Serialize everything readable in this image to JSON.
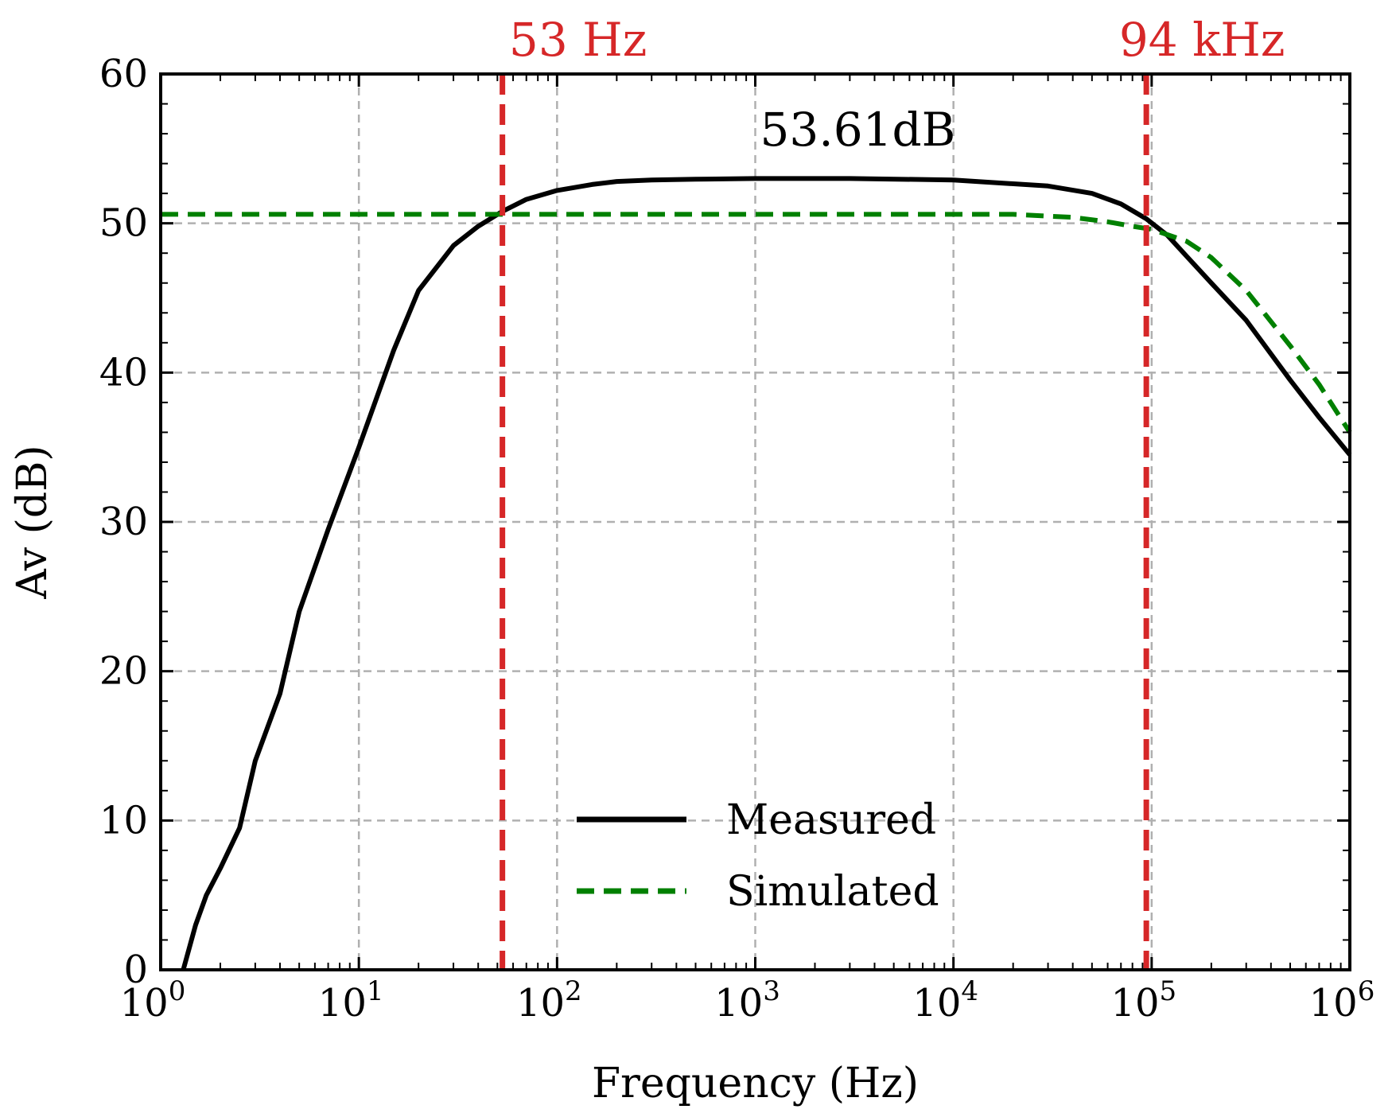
{
  "chart_data": {
    "type": "line",
    "xscale": "log",
    "xlabel": "Frequency (Hz)",
    "ylabel": "Av (dB)",
    "xlim": [
      1,
      1000000
    ],
    "ylim": [
      0,
      60
    ],
    "grid": true,
    "x_ticks": [
      {
        "value": 1,
        "base": "10",
        "exp": "0"
      },
      {
        "value": 10,
        "base": "10",
        "exp": "1"
      },
      {
        "value": 100,
        "base": "10",
        "exp": "2"
      },
      {
        "value": 1000,
        "base": "10",
        "exp": "3"
      },
      {
        "value": 10000,
        "base": "10",
        "exp": "4"
      },
      {
        "value": 100000,
        "base": "10",
        "exp": "5"
      },
      {
        "value": 1000000,
        "base": "10",
        "exp": "6"
      }
    ],
    "y_ticks": [
      0,
      10,
      20,
      30,
      40,
      50,
      60
    ],
    "series": [
      {
        "name": "Measured",
        "color": "#000000",
        "style": "solid",
        "x": [
          1.3,
          1.5,
          1.7,
          2,
          2.5,
          3,
          4,
          5,
          7,
          10,
          15,
          20,
          30,
          40,
          53,
          70,
          100,
          150,
          200,
          300,
          500,
          1000,
          3000,
          10000,
          30000,
          50000,
          70000,
          94000,
          120000,
          150000,
          200000,
          300000,
          500000,
          700000,
          1000000
        ],
        "y": [
          0,
          3,
          5,
          6.8,
          9.5,
          14,
          18.5,
          24,
          29.5,
          35,
          41.5,
          45.5,
          48.5,
          49.8,
          50.8,
          51.6,
          52.2,
          52.6,
          52.8,
          52.9,
          52.95,
          53,
          53,
          52.9,
          52.5,
          52,
          51.3,
          50.3,
          49.2,
          47.8,
          46,
          43.5,
          39.5,
          37,
          34.5
        ]
      },
      {
        "name": "Simulated",
        "color": "#008000",
        "style": "dashed",
        "x": [
          1,
          10,
          100,
          1000,
          10000,
          20000,
          40000,
          60000,
          80000,
          100000,
          150000,
          200000,
          300000,
          500000,
          700000,
          1000000
        ],
        "y": [
          50.6,
          50.6,
          50.6,
          50.6,
          50.6,
          50.6,
          50.4,
          50.1,
          49.8,
          49.6,
          48.8,
          47.7,
          45.5,
          41.8,
          39.2,
          36
        ]
      }
    ],
    "cutoff_lines": [
      {
        "x": 53,
        "label": "53 Hz",
        "color": "#d62728"
      },
      {
        "x": 94000,
        "label": "94 kHz",
        "color": "#d62728"
      }
    ],
    "annotations": [
      {
        "text": "53.61dB",
        "x": 3000,
        "y": 55.2
      }
    ],
    "legend_position": "lower-center"
  }
}
